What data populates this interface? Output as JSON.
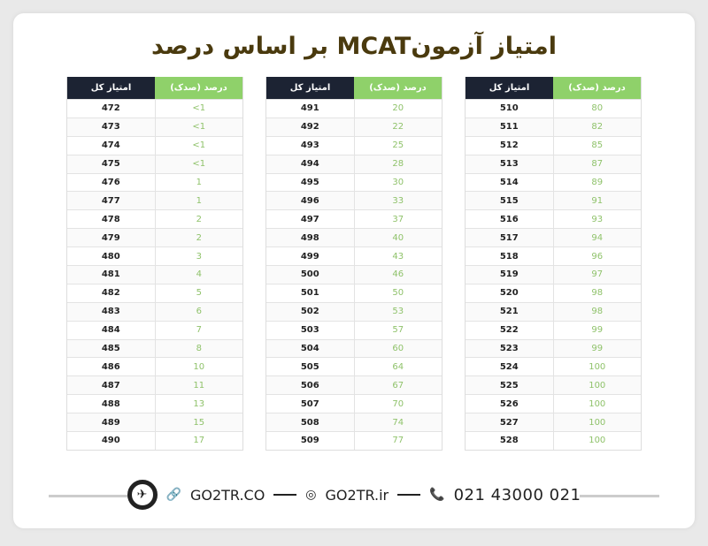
{
  "title": "امتیاز آزمونMCAT بر اساس درصد",
  "headers": {
    "score": "امتیاز کل",
    "percentile": "درصد (صدک)"
  },
  "tables": [
    {
      "rows": [
        [
          "472",
          "<1"
        ],
        [
          "473",
          "<1"
        ],
        [
          "474",
          "<1"
        ],
        [
          "475",
          "<1"
        ],
        [
          "476",
          "1"
        ],
        [
          "477",
          "1"
        ],
        [
          "478",
          "2"
        ],
        [
          "479",
          "2"
        ],
        [
          "480",
          "3"
        ],
        [
          "481",
          "4"
        ],
        [
          "482",
          "5"
        ],
        [
          "483",
          "6"
        ],
        [
          "484",
          "7"
        ],
        [
          "485",
          "8"
        ],
        [
          "486",
          "10"
        ],
        [
          "487",
          "11"
        ],
        [
          "488",
          "13"
        ],
        [
          "489",
          "15"
        ],
        [
          "490",
          "17"
        ]
      ]
    },
    {
      "rows": [
        [
          "491",
          "20"
        ],
        [
          "492",
          "22"
        ],
        [
          "493",
          "25"
        ],
        [
          "494",
          "28"
        ],
        [
          "495",
          "30"
        ],
        [
          "496",
          "33"
        ],
        [
          "497",
          "37"
        ],
        [
          "498",
          "40"
        ],
        [
          "499",
          "43"
        ],
        [
          "500",
          "46"
        ],
        [
          "501",
          "50"
        ],
        [
          "502",
          "53"
        ],
        [
          "503",
          "57"
        ],
        [
          "504",
          "60"
        ],
        [
          "505",
          "64"
        ],
        [
          "506",
          "67"
        ],
        [
          "507",
          "70"
        ],
        [
          "508",
          "74"
        ],
        [
          "509",
          "77"
        ]
      ]
    },
    {
      "rows": [
        [
          "510",
          "80"
        ],
        [
          "511",
          "82"
        ],
        [
          "512",
          "85"
        ],
        [
          "513",
          "87"
        ],
        [
          "514",
          "89"
        ],
        [
          "515",
          "91"
        ],
        [
          "516",
          "93"
        ],
        [
          "517",
          "94"
        ],
        [
          "518",
          "96"
        ],
        [
          "519",
          "97"
        ],
        [
          "520",
          "98"
        ],
        [
          "521",
          "98"
        ],
        [
          "522",
          "99"
        ],
        [
          "523",
          "99"
        ],
        [
          "524",
          "100"
        ],
        [
          "525",
          "100"
        ],
        [
          "526",
          "100"
        ],
        [
          "527",
          "100"
        ],
        [
          "528",
          "100"
        ]
      ]
    }
  ],
  "footer": {
    "website": "GO2TR.CO",
    "instagram": "GO2TR.ir",
    "phone": "021 43000 021"
  },
  "colors": {
    "header_dark": "#1c2333",
    "header_green": "#8fd16a",
    "title": "#4a3a0e"
  }
}
